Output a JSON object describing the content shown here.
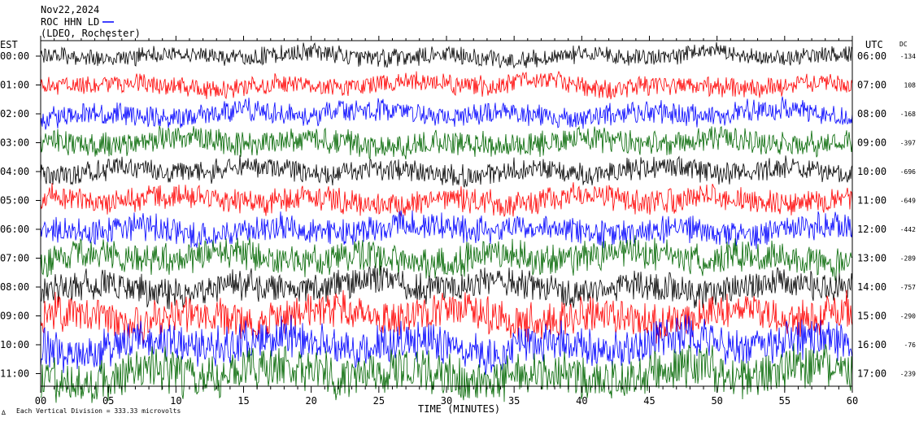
{
  "header": {
    "date": "Nov22,2024",
    "station": "ROC HHN LD",
    "network": "(LDEO, Rochester)"
  },
  "footer": {
    "scale_note": "Each Vertical Division = 333.33 microvolts",
    "corner_mark": "∆"
  },
  "chart_data": {
    "type": "line",
    "title": "",
    "xlabel": "TIME (MINUTES)",
    "left_axis_label": "EST",
    "right_axis_label": "UTC",
    "dc_label": "DC",
    "xlim": [
      0,
      60
    ],
    "x_ticks": [
      0,
      5,
      10,
      15,
      20,
      25,
      30,
      35,
      40,
      45,
      50,
      55,
      60
    ],
    "x_tick_labels": [
      "00",
      "05",
      "10",
      "15",
      "20",
      "25",
      "30",
      "35",
      "40",
      "45",
      "50",
      "55",
      "60"
    ],
    "grid": false,
    "rows": [
      {
        "est": "00:00",
        "utc": "06:00",
        "dc": "-134",
        "color": "#000000",
        "amplitude": 0.35
      },
      {
        "est": "01:00",
        "utc": "07:00",
        "dc": "108",
        "color": "#ff0000",
        "amplitude": 0.4
      },
      {
        "est": "02:00",
        "utc": "08:00",
        "dc": "-168",
        "color": "#0000ff",
        "amplitude": 0.45
      },
      {
        "est": "03:00",
        "utc": "09:00",
        "dc": "-397",
        "color": "#006600",
        "amplitude": 0.5
      },
      {
        "est": "04:00",
        "utc": "10:00",
        "dc": "-696",
        "color": "#000000",
        "amplitude": 0.45
      },
      {
        "est": "05:00",
        "utc": "11:00",
        "dc": "-649",
        "color": "#ff0000",
        "amplitude": 0.5
      },
      {
        "est": "06:00",
        "utc": "12:00",
        "dc": "-442",
        "color": "#0000ff",
        "amplitude": 0.55
      },
      {
        "est": "07:00",
        "utc": "13:00",
        "dc": "-289",
        "color": "#006600",
        "amplitude": 0.65
      },
      {
        "est": "08:00",
        "utc": "14:00",
        "dc": "-757",
        "color": "#000000",
        "amplitude": 0.6
      },
      {
        "est": "09:00",
        "utc": "15:00",
        "dc": "-290",
        "color": "#ff0000",
        "amplitude": 0.75
      },
      {
        "est": "10:00",
        "utc": "16:00",
        "dc": "-76",
        "color": "#0000ff",
        "amplitude": 0.8
      },
      {
        "est": "11:00",
        "utc": "17:00",
        "dc": "-239",
        "color": "#006600",
        "amplitude": 0.9
      }
    ]
  }
}
